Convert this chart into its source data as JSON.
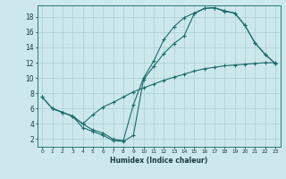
{
  "xlabel": "Humidex (Indice chaleur)",
  "bg_color": "#cce8ec",
  "grid_color": "#aacdd4",
  "line_color": "#1a6b6b",
  "xlim": [
    -0.5,
    23.5
  ],
  "ylim": [
    1.0,
    19.5
  ],
  "xticks": [
    0,
    1,
    2,
    3,
    4,
    5,
    6,
    7,
    8,
    9,
    10,
    11,
    12,
    13,
    14,
    15,
    16,
    17,
    18,
    19,
    20,
    21,
    22,
    23
  ],
  "yticks": [
    2,
    4,
    6,
    8,
    10,
    12,
    14,
    16,
    18
  ],
  "line1_x": [
    0,
    1,
    2,
    3,
    4,
    5,
    6,
    7,
    8,
    9,
    10,
    11,
    12,
    13,
    14,
    15,
    16,
    17,
    18,
    19,
    20,
    21,
    22,
    23
  ],
  "line1_y": [
    7.5,
    6.0,
    5.5,
    5.0,
    4.0,
    3.2,
    2.8,
    2.0,
    1.8,
    6.5,
    10.0,
    12.2,
    15.0,
    16.7,
    17.9,
    18.5,
    19.1,
    19.2,
    18.8,
    18.5,
    16.9,
    14.6,
    13.1,
    11.9
  ],
  "line2_x": [
    0,
    1,
    2,
    3,
    4,
    5,
    6,
    7,
    8,
    9,
    10,
    11,
    12,
    13,
    14,
    15,
    16,
    17,
    18,
    19,
    20,
    21,
    22,
    23
  ],
  "line2_y": [
    7.5,
    6.0,
    5.5,
    5.0,
    3.5,
    3.0,
    2.5,
    1.8,
    1.7,
    2.5,
    9.8,
    11.5,
    13.2,
    14.5,
    15.5,
    18.4,
    19.1,
    19.2,
    18.7,
    18.5,
    16.9,
    14.6,
    13.1,
    11.9
  ],
  "line3_x": [
    1,
    2,
    3,
    4,
    5,
    6,
    7,
    8,
    9,
    10,
    11,
    12,
    13,
    14,
    15,
    16,
    17,
    18,
    19,
    20,
    21,
    22,
    23
  ],
  "line3_y": [
    6.0,
    5.5,
    5.0,
    4.0,
    5.2,
    6.2,
    6.8,
    7.5,
    8.2,
    8.7,
    9.2,
    9.7,
    10.1,
    10.5,
    10.9,
    11.2,
    11.4,
    11.6,
    11.7,
    11.8,
    11.9,
    12.0,
    12.0
  ]
}
